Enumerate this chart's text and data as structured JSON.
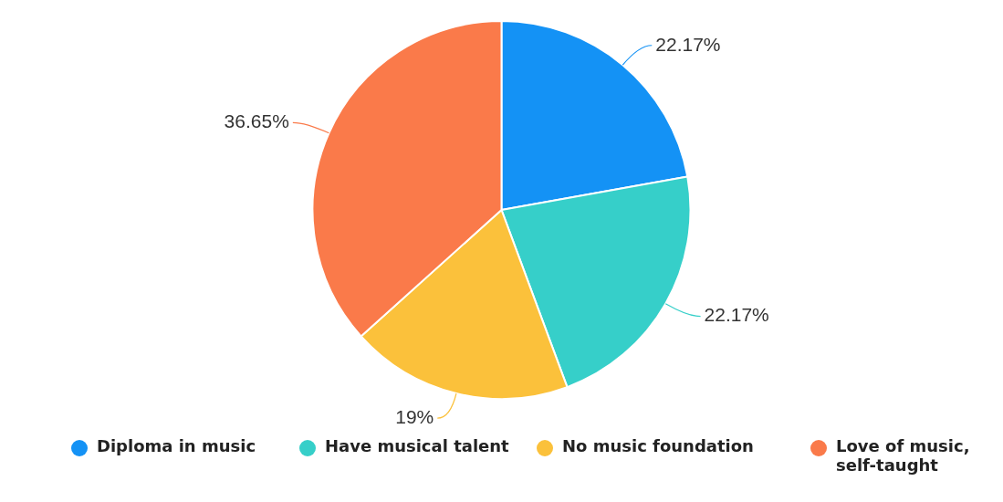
{
  "chart_data": {
    "type": "pie",
    "categories": [
      "Diploma in music",
      "Have musical talent",
      "No music foundation",
      "Love of music, self-taught"
    ],
    "values": [
      22.17,
      22.17,
      19,
      36.65
    ],
    "colors": [
      "#1492f5",
      "#36cfc9",
      "#fbc13b",
      "#fa7a4a"
    ],
    "value_labels": [
      "22.17%",
      "22.17%",
      "19%",
      "36.65%"
    ],
    "legend": "bottom"
  }
}
